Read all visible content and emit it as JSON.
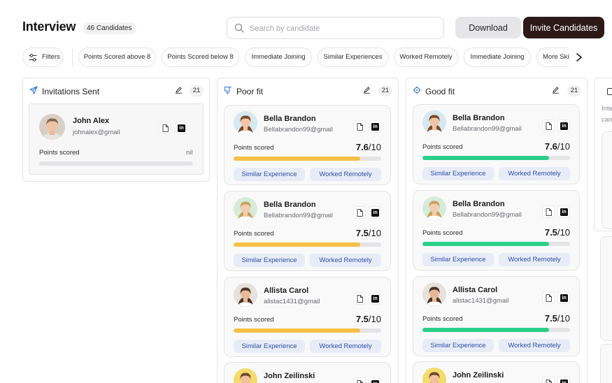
{
  "header": {
    "title": "Interview",
    "count_badge": "46 Candidates",
    "search_placeholder": "Search by candidate",
    "download_label": "Download",
    "invite_label": "Invite Candidates"
  },
  "filters": {
    "filters_label": "Filters",
    "chips": [
      "Points Scored above 8",
      "Points Scored below 8",
      "Immediate Joining",
      "Similar Experiences",
      "Worked Remotely",
      "Immediate Joining",
      "More Skills"
    ]
  },
  "columns": {
    "invitations": {
      "title": "Invitations Sent",
      "count": "21",
      "cards": [
        {
          "name": "John Alex",
          "email": "johnalex@gmail",
          "points_label": "Points scored",
          "score": "nil",
          "progress": 0
        }
      ]
    },
    "poor_fit": {
      "title": "Poor fit",
      "count": "21",
      "cards": [
        {
          "name": "Bella Brandon",
          "email": "Bellabrandon99@gmail",
          "points_label": "Points scored",
          "score_value": "7.6",
          "score_total": "/10",
          "progress": 0.86,
          "tags": [
            "Similar Experience",
            "Worked Remotely"
          ]
        },
        {
          "name": "Bella Brandon",
          "email": "Bellabrandon99@gmail",
          "points_label": "Points scored",
          "score_value": "7.5",
          "score_total": "/10",
          "progress": 0.86,
          "tags": [
            "Similar Experience",
            "Worked Remotely"
          ]
        },
        {
          "name": "Allista Carol",
          "email": "alistac1431@gmail",
          "points_label": "Points scored",
          "score_value": "7.5",
          "score_total": "/10",
          "progress": 0.86,
          "tags": [
            "Similar Experience",
            "Worked Remotely"
          ]
        },
        {
          "name": "John Zeilinski"
        }
      ]
    },
    "good_fit": {
      "title": "Good fit",
      "count": "21",
      "cards": [
        {
          "name": "Bella Brandon",
          "email": "Bellabrandon99@gmail",
          "points_label": "Points scored",
          "score_value": "7.6",
          "score_total": "/10",
          "progress": 0.86,
          "tags": [
            "Similar Experience",
            "Worked Remotely"
          ]
        },
        {
          "name": "Bella Brandon",
          "email": "Bellabrandon99@gmail",
          "points_label": "Points scored",
          "score_value": "7.5",
          "score_total": "/10",
          "progress": 0.86,
          "tags": [
            "Similar Experience",
            "Worked Remotely"
          ]
        },
        {
          "name": "Allista Carol",
          "email": "alistac1431@gmail",
          "points_label": "Points scored",
          "score_value": "7.5",
          "score_total": "/10",
          "progress": 0.86,
          "tags": [
            "Similar Experience",
            "Worked Remotely"
          ]
        },
        {
          "name": "John Zeilinski"
        }
      ]
    },
    "peek": {
      "text_line1": "Inte",
      "text_line2": "can"
    }
  },
  "colors": {
    "poor_fit_bar": "#f5c044",
    "good_fit_bar": "#2bcf8a",
    "invite_button": "#2d1a18",
    "tag_text": "#2d4fa8"
  },
  "icons": {
    "search": "search-icon",
    "filters": "filter-sliders-icon",
    "invitations": "paper-plane-icon",
    "poor_fit": "thumbs-down-icon",
    "good_fit": "target-icon",
    "edit": "pencil-icon",
    "resume": "document-icon",
    "linkedin": "linkedin-icon",
    "chevron": "chevron-right-icon"
  }
}
